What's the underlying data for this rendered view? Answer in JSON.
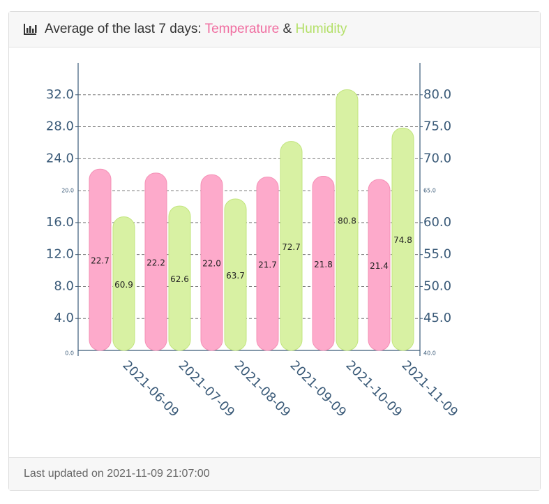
{
  "header": {
    "icon": "bar-chart-icon",
    "title_prefix": "Average of the last 7 days: ",
    "series1": "Temperature",
    "separator": " & ",
    "series2": "Humidity"
  },
  "footer": {
    "updated_label": "Last updated on 2021-11-09 21:07:00"
  },
  "colors": {
    "temperature_fill": "#fdaacb",
    "temperature_stroke": "#f490b6",
    "humidity_fill": "#d8f1a3",
    "humidity_stroke": "#c2e57e",
    "axis": "#3a5a78"
  },
  "chart_data": {
    "type": "bar",
    "categories": [
      "2021-06-09",
      "2021-07-09",
      "2021-08-09",
      "2021-09-09",
      "2021-10-09",
      "2021-11-09"
    ],
    "series": [
      {
        "name": "Temperature",
        "axis": "left",
        "values": [
          22.7,
          22.2,
          22.0,
          21.7,
          21.8,
          21.4
        ]
      },
      {
        "name": "Humidity",
        "axis": "right",
        "values": [
          60.9,
          62.6,
          63.7,
          72.7,
          80.8,
          74.8
        ]
      }
    ],
    "y_left": {
      "min": 0,
      "max": 36,
      "ticks": [
        "0.0",
        "4.0",
        "8.0",
        "12.0",
        "16.0",
        "20.0",
        "24.0",
        "28.0",
        "32.0"
      ]
    },
    "y_right": {
      "min": 40,
      "max": 85,
      "ticks": [
        "40.0",
        "45.0",
        "50.0",
        "55.0",
        "60.0",
        "65.0",
        "70.0",
        "75.0",
        "80.0"
      ]
    },
    "grid": true,
    "legend": "none"
  }
}
